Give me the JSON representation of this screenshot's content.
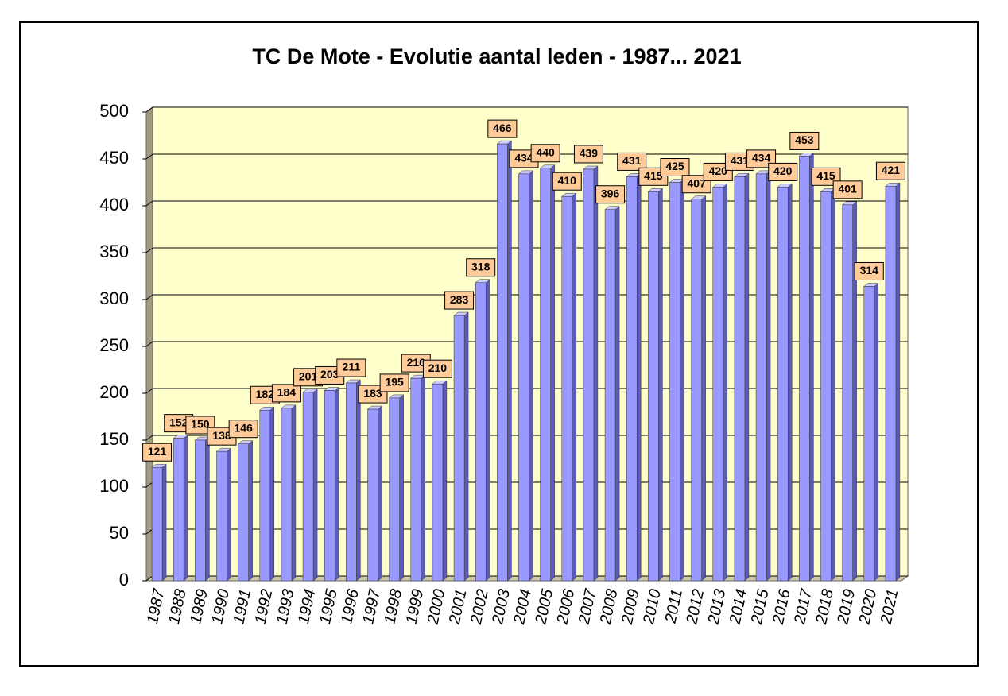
{
  "chart_data": {
    "type": "bar",
    "title": "TC De Mote - Evolutie aantal leden - 1987... 2021",
    "categories": [
      "1987",
      "1988",
      "1989",
      "1990",
      "1991",
      "1992",
      "1993",
      "1994",
      "1995",
      "1996",
      "1997",
      "1998",
      "1999",
      "2000",
      "2001",
      "2002",
      "2003",
      "2004",
      "2005",
      "2006",
      "2007",
      "2008",
      "2009",
      "2010",
      "2011",
      "2012",
      "2013",
      "2014",
      "2015",
      "2016",
      "2017",
      "2018",
      "2019",
      "2020",
      "2021"
    ],
    "values": [
      121,
      152,
      150,
      138,
      146,
      182,
      184,
      201,
      203,
      211,
      183,
      195,
      216,
      210,
      283,
      318,
      466,
      434,
      440,
      410,
      439,
      396,
      431,
      415,
      425,
      407,
      420,
      431,
      434,
      420,
      453,
      415,
      401,
      314,
      421
    ],
    "color": "#9999ff",
    "ylim": [
      0,
      500
    ],
    "yticks": [
      0,
      50,
      100,
      150,
      200,
      250,
      300,
      350,
      400,
      450,
      500
    ],
    "grid": true
  }
}
